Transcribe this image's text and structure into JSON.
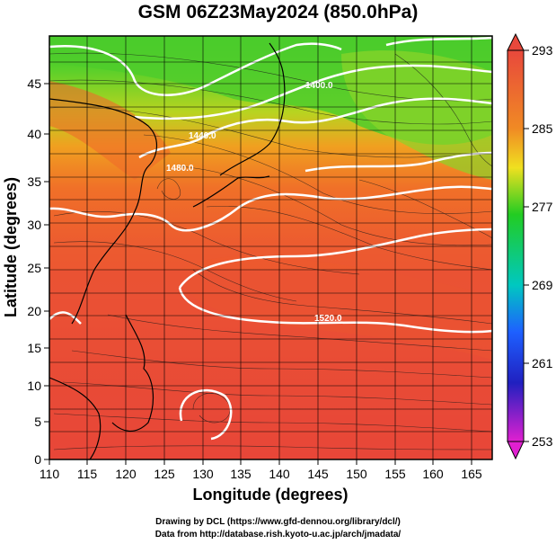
{
  "title": "GSM 06Z23May2024 (850.0hPa)",
  "x_axis": {
    "label": "Longitude (degrees)",
    "ticks": [
      "110",
      "115",
      "120",
      "125",
      "130",
      "135",
      "140",
      "145",
      "150",
      "155",
      "160",
      "165"
    ]
  },
  "y_axis": {
    "label": "Latitude  (degrees)",
    "ticks": [
      "0",
      "5",
      "10",
      "15",
      "20",
      "25",
      "30",
      "35",
      "40",
      "45"
    ]
  },
  "colorbar": {
    "labels": [
      "293",
      "285",
      "277",
      "269",
      "261",
      "253"
    ],
    "colors": {
      "top": "#e8483c",
      "upper": "#f08a24",
      "mid_upper": "#f0e020",
      "mid": "#22cc22",
      "lower_mid": "#00c8c0",
      "low": "#1e60ff",
      "lower": "#2020c0",
      "bottom": "#e020d0"
    }
  },
  "contour_labels": [
    "1400.0",
    "1440.0",
    "1480.0",
    "1520.0"
  ],
  "credits": [
    "Drawing by DCL (https://www.gfd-dennou.org/library/dcl/)",
    "Data from http://database.rish.kyoto-u.ac.jp/arch/jmadata/"
  ]
}
